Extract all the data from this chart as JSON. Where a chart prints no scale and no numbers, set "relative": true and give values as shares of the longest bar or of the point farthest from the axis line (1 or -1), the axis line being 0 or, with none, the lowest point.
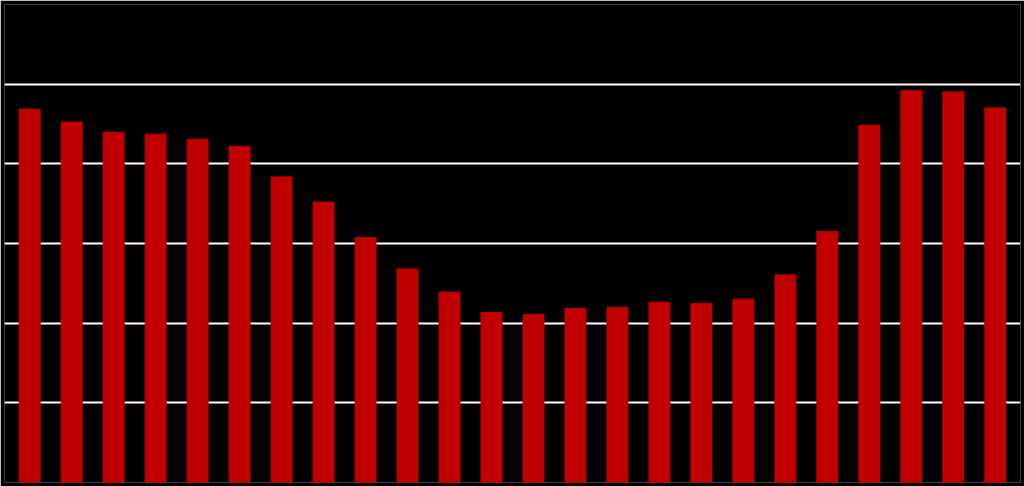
{
  "chart_data": {
    "type": "bar",
    "relative": true,
    "grid": "y",
    "color": "#c00000",
    "categories": [
      null,
      null,
      null,
      null,
      null,
      null,
      null,
      null,
      null,
      null,
      null,
      null,
      null,
      null,
      null,
      null,
      null,
      null,
      null,
      null,
      null,
      null,
      null,
      null
    ],
    "values": [
      0.953,
      0.92,
      0.894,
      0.889,
      0.876,
      0.858,
      0.78,
      0.716,
      0.625,
      0.545,
      0.486,
      0.434,
      0.429,
      0.444,
      0.447,
      0.46,
      0.457,
      0.468,
      0.53,
      0.641,
      0.912,
      1.0,
      0.997,
      0.956
    ]
  }
}
